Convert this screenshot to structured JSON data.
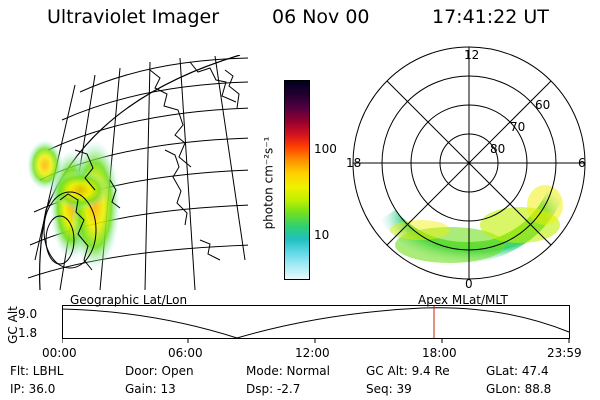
{
  "header": {
    "instrument": "Ultraviolet Imager",
    "date": "06 Nov 00",
    "time": "17:41:22 UT"
  },
  "colorbar": {
    "label": "photon cm⁻²s⁻¹",
    "ticks": [
      "100",
      "10"
    ],
    "colors": [
      "#000020",
      "#200030",
      "#500040",
      "#900030",
      "#d01020",
      "#ff4000",
      "#ff9000",
      "#ffd000",
      "#f0f000",
      "#c0f000",
      "#70e020",
      "#30d070",
      "#20c0c0",
      "#60d8e8",
      "#a8ecf4",
      "#e8f8fc"
    ]
  },
  "polar": {
    "mlt_labels": {
      "top": "12",
      "left": "18",
      "right": "6",
      "bottom": "0"
    },
    "lat_labels": [
      "60",
      "70",
      "80"
    ]
  },
  "timeline": {
    "ylabel": "GC Alt",
    "ymax": "9.0",
    "ymin": "1.8",
    "left_title": "Geographic Lat/Lon",
    "right_title": "Apex MLat/MLT",
    "ticks": [
      "00:00",
      "06:00",
      "12:00",
      "18:00",
      "23:59"
    ]
  },
  "info": {
    "flt": "Flt: LBHL",
    "ip": "IP: 36.0",
    "door": "Door: Open",
    "gain": "Gain: 13",
    "mode": "Mode: Normal",
    "dsp": "Dsp:    -2.7",
    "gcalt": "GC Alt: 9.4 Re",
    "seq": "Seq: 39",
    "glat": "GLat:  47.4",
    "glon": "GLon:  88.8"
  }
}
